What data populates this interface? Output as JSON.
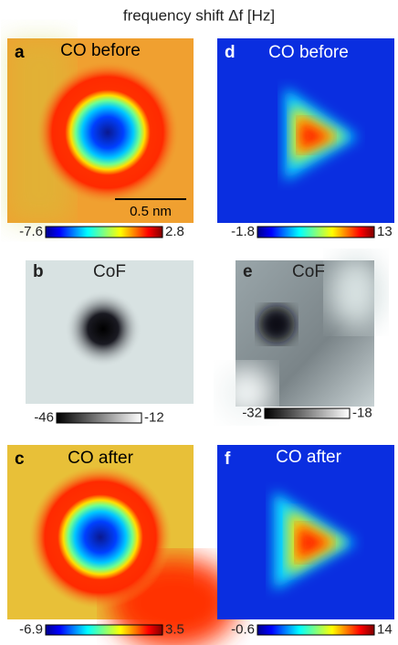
{
  "title": "frequency shift Δf [Hz]",
  "panels": [
    {
      "label": "a",
      "title": "CO before",
      "cbar_min": -7.6,
      "cbar_max": 2.8,
      "scale_bar": "0.5 nm"
    },
    {
      "label": "b",
      "title": "CoF",
      "cbar_min": -46,
      "cbar_max": -12
    },
    {
      "label": "c",
      "title": "CO after",
      "cbar_min": -6.9,
      "cbar_max": 3.5
    },
    {
      "label": "d",
      "title": "CO before",
      "cbar_min": -1.8,
      "cbar_max": 13
    },
    {
      "label": "e",
      "title": "CoF",
      "cbar_min": -32,
      "cbar_max": -18
    },
    {
      "label": "f",
      "title": "CO after",
      "cbar_min": -0.6,
      "cbar_max": 14
    }
  ]
}
